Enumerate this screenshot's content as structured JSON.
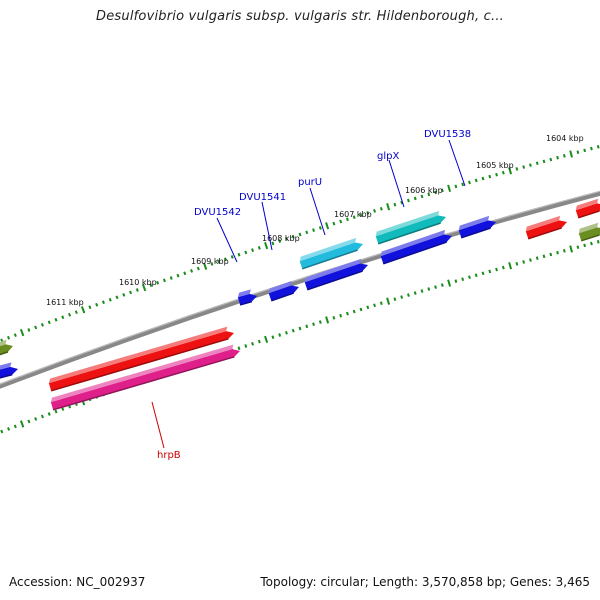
{
  "title": "Desulfovibrio vulgaris subsp. vulgaris str. Hildenborough, c...",
  "footer": {
    "accession": "Accession: NC_002937",
    "topology": "Topology: circular; Length: 3,570,858 bp; Genes: 3,465"
  },
  "scale_labels": [
    "1604 kbp",
    "1605 kbp",
    "1606 kbp",
    "1607 kbp",
    "1608 kbp",
    "1609 kbp",
    "1610 kbp",
    "1611 kbp"
  ],
  "gene_labels": [
    "DVU1538",
    "glpX",
    "purU",
    "DVU1541",
    "DVU1542",
    "hrpB"
  ],
  "colors": {
    "backbone": "#888888",
    "ticks": "#1a8c1a",
    "label_blue": "#0000cc",
    "label_red": "#cc0000",
    "red": "#ee1111",
    "blue": "#1111dd",
    "cyan": "#22bbdd",
    "teal": "#11bbbb",
    "magenta": "#e0208a",
    "olive": "#6b8e23"
  }
}
